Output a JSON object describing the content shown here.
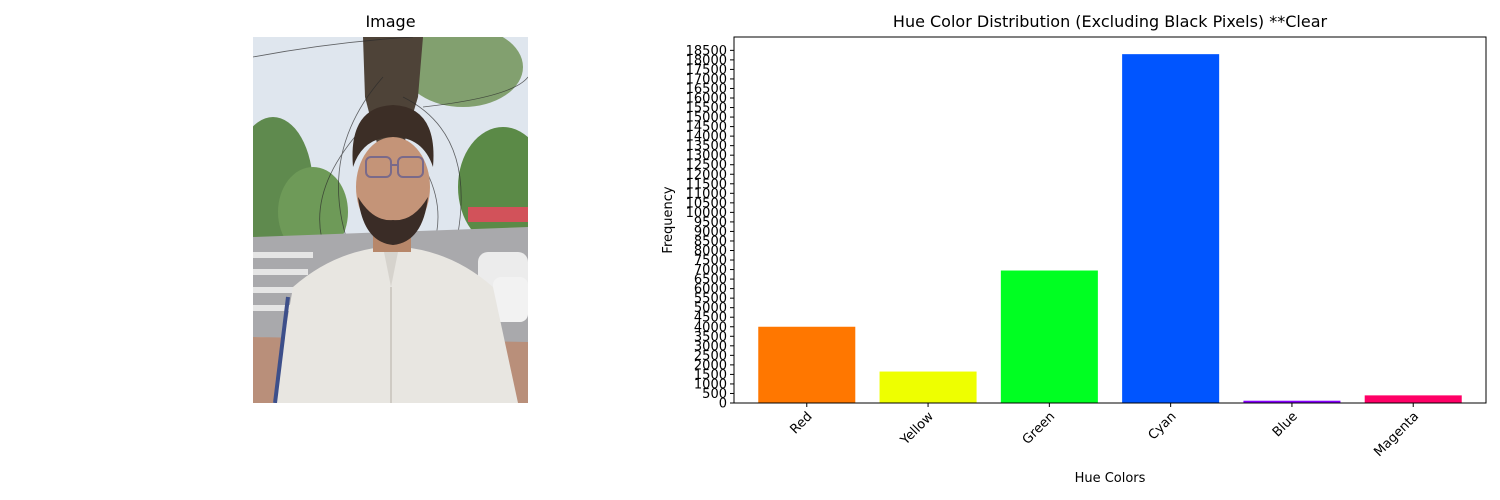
{
  "left_panel": {
    "title": "Image"
  },
  "chart_data": {
    "type": "bar",
    "title": "Hue Color Distribution (Excluding Black Pixels) **Clear",
    "xlabel": "Hue Colors",
    "ylabel": "Frequency",
    "categories": [
      "Red",
      "Yellow",
      "Green",
      "Cyan",
      "Blue",
      "Magenta"
    ],
    "values": [
      4000,
      1650,
      6950,
      18300,
      120,
      400
    ],
    "colors": [
      "#ff7700",
      "#eeff00",
      "#00ff22",
      "#0055ff",
      "#8800ff",
      "#ff0066"
    ],
    "ylim": [
      0,
      19200
    ],
    "ytick_step": 500,
    "yticks": [
      "0",
      "500",
      "1000",
      "1500",
      "2000",
      "2500",
      "3000",
      "3500",
      "4000",
      "4500",
      "5000",
      "5500",
      "6000",
      "6500",
      "7000",
      "7500",
      "8000",
      "8500",
      "9000",
      "9500",
      "10000",
      "10500",
      "11000",
      "11500",
      "12000",
      "12500",
      "13000",
      "13500",
      "14000",
      "14500",
      "15000",
      "15500",
      "16000",
      "16500",
      "17000",
      "17500",
      "18000",
      "18500"
    ],
    "grid": false,
    "legend": "none"
  }
}
